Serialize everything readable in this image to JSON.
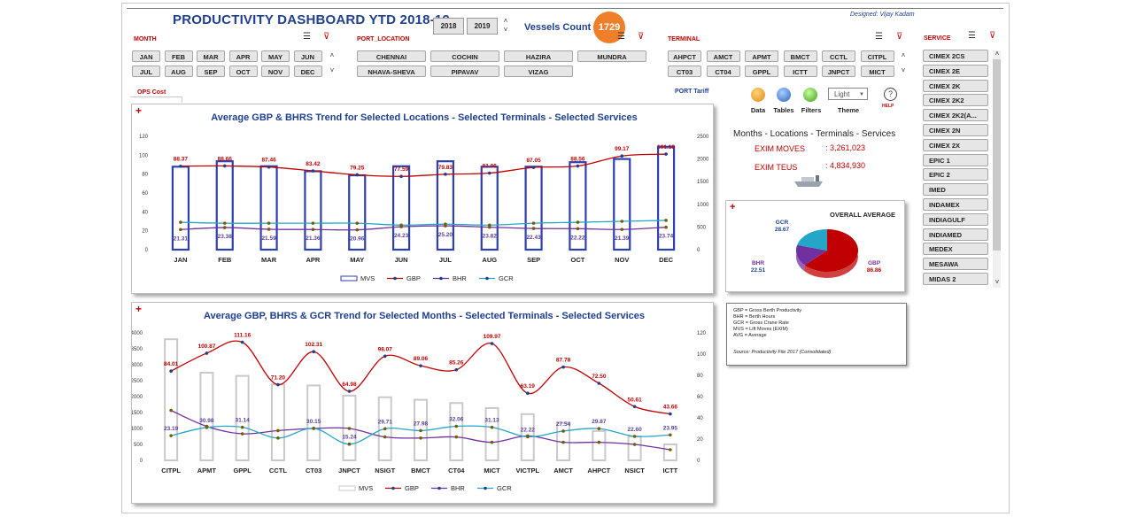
{
  "header": {
    "title": "PRODUCTIVITY DASHBOARD YTD 2018-19",
    "designed": "Designed: Vijay Kadam",
    "years": [
      "2018",
      "2019"
    ],
    "vessels_label": "Vessels Count",
    "vessels_count": "1729"
  },
  "slicers": {
    "month": {
      "label": "MONTH",
      "items": [
        "JAN",
        "FEB",
        "MAR",
        "APR",
        "MAY",
        "JUN",
        "JUL",
        "AUG",
        "SEP",
        "OCT",
        "NOV",
        "DEC"
      ]
    },
    "port": {
      "label": "PORT_LOCATION",
      "items": [
        "CHENNAI",
        "COCHIN",
        "HAZIRA",
        "MUNDRA",
        "NHAVA-SHEVA",
        "PIPAVAV",
        "VIZAG"
      ]
    },
    "terminal": {
      "label": "TERMINAL",
      "items": [
        "AHPCT",
        "AMCT",
        "APMT",
        "BMCT",
        "CCTL",
        "CITPL",
        "CT03",
        "CT04",
        "GPPL",
        "ICTT",
        "JNPCT",
        "MICT"
      ]
    },
    "service": {
      "label": "SERVICE",
      "items": [
        "CIMEX 2CS",
        "CIMEX 2E",
        "CIMEX 2K",
        "CIMEX 2K2",
        "CIMEX 2K2(A...",
        "CIMEX 2N",
        "CIMEX 2X",
        "EPIC 1",
        "EPIC 2",
        "IMED",
        "INDAMEX",
        "INDIAGULF",
        "INDIAMED",
        "MEDEX",
        "MESAWA",
        "MIDAS 2"
      ]
    }
  },
  "tabs": {
    "ops": "OPS Cost",
    "port_tariff": "PORT Tariff"
  },
  "toolbar": {
    "data": "Data",
    "tables": "Tables",
    "filters": "Filters",
    "theme": "Theme",
    "theme_value": "Light",
    "help": "HELP"
  },
  "summary": {
    "title": "Months - Locations - Terminals - Services",
    "exim_moves_label": "EXIM MOVES",
    "exim_moves_value": ": 3,261,023",
    "exim_teus_label": "EXIM TEUS",
    "exim_teus_value": ": 4,834,930"
  },
  "notes": [
    "GBP = Gross Berth Productivity",
    "BHR = Berth Hours",
    "GCR = Gross Crane Rate",
    "MVS = Lift Moves (EXIM)",
    "AVG =  Average"
  ],
  "notes_source": "Source: Productivity File 2017 (Consolidated)",
  "plus": "+",
  "chart_data": [
    {
      "type": "bar",
      "title": "Average GBP & BHRS Trend for Selected Locations - Selected Terminals - Selected Services",
      "categories": [
        "JAN",
        "FEB",
        "MAR",
        "APR",
        "MAY",
        "JUN",
        "JUL",
        "AUG",
        "SEP",
        "OCT",
        "NOV",
        "DEC"
      ],
      "ylim_left": [
        0,
        120
      ],
      "yticks_left": [
        0,
        20,
        40,
        60,
        80,
        100,
        120
      ],
      "ylim_right": [
        0,
        2500
      ],
      "yticks_right": [
        0,
        500,
        1000,
        1500,
        2000,
        2500
      ],
      "series": [
        {
          "name": "MVS",
          "axis": "right",
          "kind": "bar",
          "values": [
            1830,
            1950,
            1840,
            1730,
            1640,
            1840,
            1950,
            1830,
            1830,
            1930,
            2000,
            2270
          ]
        },
        {
          "name": "GBP",
          "axis": "left",
          "kind": "line",
          "color": "#c00000",
          "values": [
            88.37,
            88.66,
            87.46,
            83.42,
            79.25,
            77.59,
            79.83,
            81.06,
            87.05,
            88.56,
            99.17,
            101.18
          ]
        },
        {
          "name": "BHR",
          "axis": "left",
          "kind": "line",
          "color": "#7030a0",
          "values": [
            21.31,
            23.38,
            21.59,
            21.36,
            20.96,
            24.23,
            25.2,
            23.82,
            22.43,
            22.22,
            21.39,
            23.74
          ]
        },
        {
          "name": "GCR",
          "axis": "left",
          "kind": "line",
          "color": "#23a6c8",
          "values": [
            29,
            28,
            28,
            28,
            28,
            26,
            27,
            26,
            28,
            29,
            30,
            31
          ]
        }
      ],
      "labels_gbp": [
        "88.37",
        "88.66",
        "87.46",
        "83.42",
        "79.25",
        "77.59",
        "79.83",
        "81.06",
        "87.05",
        "88.56",
        "99.17",
        "101.18"
      ],
      "labels_bhr": [
        "21.31",
        "23.38",
        "21.59",
        "21.36",
        "20.96",
        "24.23",
        "25.20",
        "23.82",
        "22.43",
        "22.22",
        "21.39",
        "23.74"
      ],
      "legend": [
        "MVS",
        "GBP",
        "BHR",
        "GCR"
      ]
    },
    {
      "type": "pie",
      "title": "OVERALL AVERAGE",
      "slices": [
        {
          "name": "GBP",
          "value": 86.86,
          "color": "#c00000"
        },
        {
          "name": "BHR",
          "value": 22.51,
          "color": "#7030a0"
        },
        {
          "name": "GCR",
          "value": 28.67,
          "color": "#23a6c8"
        }
      ]
    },
    {
      "type": "bar",
      "title": "Average GBP, BHRS & GCR Trend for Selected Months - Selected Terminals - Selected Services",
      "categories": [
        "CITPL",
        "APMT",
        "GPPL",
        "CCTL",
        "CT03",
        "JNPCT",
        "NSIGT",
        "BMCT",
        "CT04",
        "MICT",
        "VICTPL",
        "AMCT",
        "AHPCT",
        "NSICT",
        "ICTT"
      ],
      "ylim_left": [
        0,
        4000
      ],
      "yticks_left": [
        0,
        500,
        1000,
        1500,
        2000,
        2500,
        3000,
        3500,
        4000
      ],
      "ylim_right": [
        0,
        120
      ],
      "yticks_right": [
        0,
        20,
        40,
        60,
        80,
        100,
        120
      ],
      "series": [
        {
          "name": "MVS",
          "axis": "left",
          "kind": "bar",
          "values": [
            3800,
            2750,
            2650,
            2380,
            2350,
            2030,
            1980,
            1900,
            1800,
            1640,
            1450,
            1180,
            920,
            750,
            500
          ]
        },
        {
          "name": "GBP",
          "axis": "right",
          "kind": "line",
          "color": "#c00000",
          "values": [
            84.01,
            100.87,
            111.16,
            71.2,
            102.31,
            64.98,
            98.07,
            89.06,
            85.26,
            109.97,
            63.19,
            87.78,
            72.5,
            50.61,
            43.66
          ]
        },
        {
          "name": "BHR",
          "axis": "right",
          "kind": "line",
          "color": "#7030a0",
          "values": [
            47,
            32,
            25,
            28,
            30,
            30,
            22,
            21,
            22,
            17,
            23,
            17,
            17,
            15,
            10
          ]
        },
        {
          "name": "GCR",
          "axis": "right",
          "kind": "line",
          "color": "#23a6c8",
          "values": [
            23.19,
            30.98,
            31.14,
            21,
            30.15,
            15.24,
            29.71,
            27.98,
            32.06,
            31.13,
            22.22,
            27.54,
            29.87,
            22.6,
            23.95
          ]
        }
      ],
      "labels_gbp": [
        "84.01",
        "100.87",
        "111.16",
        "71.20",
        "102.31",
        "64.98",
        "98.07",
        "89.06",
        "85.26",
        "109.97",
        "63.19",
        "87.78",
        "72.50",
        "50.61",
        "43.66"
      ],
      "labels_gcr": [
        "23.19",
        "30.98",
        "31.14",
        "",
        "30.15",
        "15.24",
        "29.71",
        "27.98",
        "32.06",
        "31.13",
        "22.22",
        "27.54",
        "29.87",
        "22.60",
        "23.95"
      ],
      "legend": [
        "MVS",
        "GBP",
        "BHR",
        "GCR"
      ]
    }
  ]
}
